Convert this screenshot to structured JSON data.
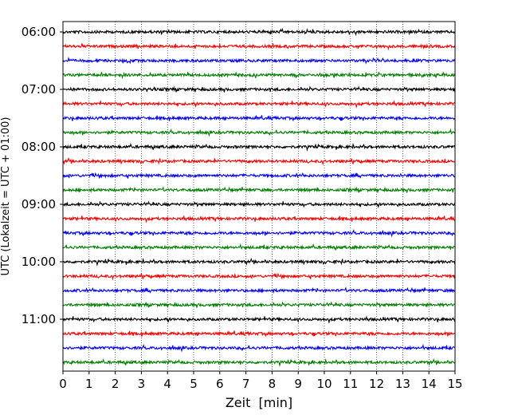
{
  "chart_data": {
    "type": "line",
    "title": "",
    "xlabel": "Zeit  [min]",
    "ylabel": "UTC (Lokalzeit = UTC + 01:00)",
    "xlim": [
      0,
      15
    ],
    "xticks": [
      0,
      1,
      2,
      3,
      4,
      5,
      6,
      7,
      8,
      9,
      10,
      11,
      12,
      13,
      14,
      15
    ],
    "grid": "vertical dotted",
    "ytick_labels": [
      "06:00",
      "07:00",
      "08:00",
      "09:00",
      "10:00",
      "11:00"
    ],
    "trace_interval_min": 15,
    "trace_start": "06:00",
    "trace_count": 24,
    "trace_colors": [
      "#000000",
      "#ff0000",
      "#0000ff",
      "#008000"
    ],
    "amplitude": "low background noise on all traces"
  }
}
